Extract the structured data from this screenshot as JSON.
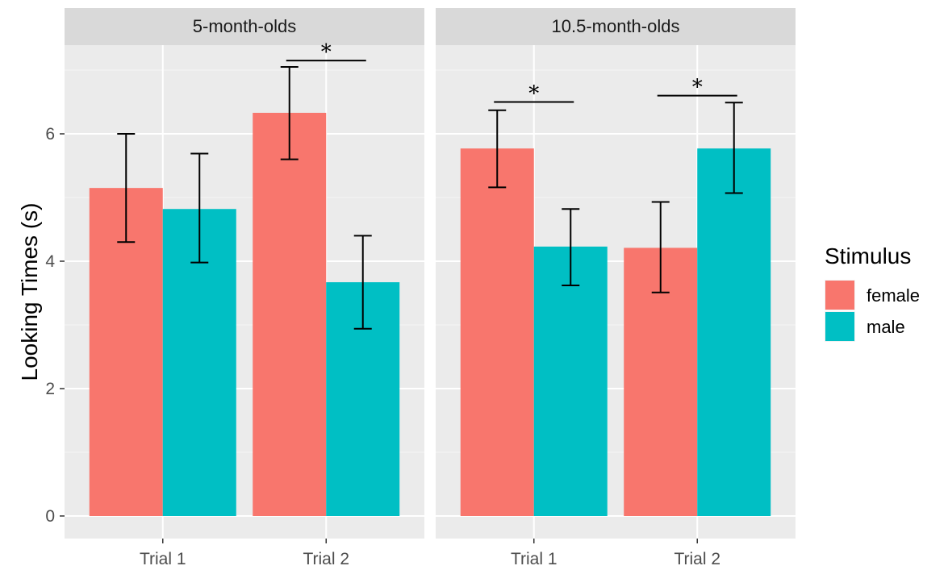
{
  "chart_data": {
    "type": "bar",
    "ylabel": "Looking Times (s)",
    "xlabel": "",
    "ylim": [
      0,
      7.6
    ],
    "yticks": [
      0,
      2,
      4,
      6
    ],
    "grid": true,
    "categories": [
      "Trial 1",
      "Trial 2"
    ],
    "legend": {
      "title": "Stimulus",
      "position": "right",
      "items": [
        {
          "name": "female",
          "color": "#F8766D"
        },
        {
          "name": "male",
          "color": "#00BFC4"
        }
      ]
    },
    "panels": [
      {
        "title": "5-month-olds",
        "series": [
          {
            "name": "female",
            "color": "#F8766D",
            "values": [
              5.15,
              6.33
            ],
            "error_low": [
              4.3,
              5.6
            ],
            "error_high": [
              6.0,
              7.05
            ]
          },
          {
            "name": "male",
            "color": "#00BFC4",
            "values": [
              4.82,
              3.67
            ],
            "error_low": [
              3.98,
              2.94
            ],
            "error_high": [
              5.69,
              4.4
            ]
          }
        ],
        "significance": [
          {
            "category": "Trial 2",
            "label": "*",
            "y": 7.15
          }
        ]
      },
      {
        "title": "10.5-month-olds",
        "series": [
          {
            "name": "female",
            "color": "#F8766D",
            "values": [
              5.77,
              4.21
            ],
            "error_low": [
              5.16,
              3.51
            ],
            "error_high": [
              6.37,
              4.93
            ]
          },
          {
            "name": "male",
            "color": "#00BFC4",
            "values": [
              4.23,
              5.77
            ],
            "error_low": [
              3.62,
              5.07
            ],
            "error_high": [
              4.82,
              6.49
            ]
          }
        ],
        "significance": [
          {
            "category": "Trial 1",
            "label": "*",
            "y": 6.5
          },
          {
            "category": "Trial 2",
            "label": "*",
            "y": 6.6
          }
        ]
      }
    ]
  }
}
